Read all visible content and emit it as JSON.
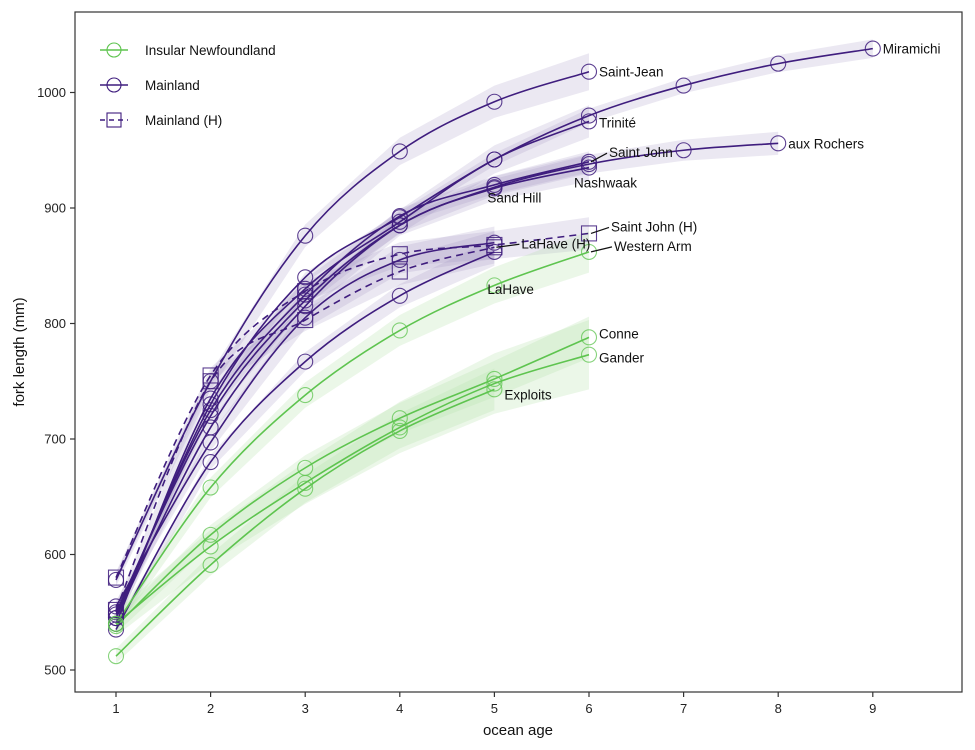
{
  "chart_data": {
    "type": "line",
    "title": "",
    "xlabel": "ocean age",
    "ylabel": "fork length (mm)",
    "xlim": [
      0.3,
      9.9
    ],
    "ylim": [
      481,
      1056
    ],
    "x_ticks": [
      "1",
      "2",
      "3",
      "4",
      "5",
      "6",
      "7",
      "8",
      "9"
    ],
    "y_ticks": [
      "500",
      "600",
      "700",
      "800",
      "900",
      "1000"
    ],
    "grid": false,
    "legend_position": "top-left",
    "colors": {
      "insular": "#5ec44f",
      "mainland": "#3f1d7e",
      "mainland_band": "#9a8ac0",
      "insular_band": "#b7e3ad"
    },
    "legend": [
      {
        "label": "Insular Newfoundland",
        "group": "insular",
        "marker": "circle",
        "dash": false
      },
      {
        "label": "Mainland",
        "group": "mainland",
        "marker": "circle",
        "dash": false
      },
      {
        "label": "Mainland (H)",
        "group": "mainland",
        "marker": "square",
        "dash": true
      }
    ],
    "series": [
      {
        "name": "Miramichi",
        "group": "mainland",
        "marker": "circle",
        "dash": false,
        "x": [
          1,
          2,
          3,
          4,
          5,
          6,
          7,
          8,
          9
        ],
        "values": [
          545,
          730,
          840,
          892,
          942,
          980,
          1006,
          1025,
          1038
        ],
        "band": 8
      },
      {
        "name": "Saint-Jean",
        "group": "mainland",
        "marker": "circle",
        "dash": false,
        "x": [
          1,
          2,
          3,
          4,
          5,
          6
        ],
        "values": [
          578,
          750,
          876,
          949,
          992,
          1018
        ],
        "band": 16
      },
      {
        "name": "Trinité",
        "group": "mainland",
        "marker": "circle",
        "dash": false,
        "x": [
          1,
          2,
          3,
          4,
          5,
          6
        ],
        "values": [
          540,
          735,
          830,
          888,
          942,
          975
        ],
        "band": 14
      },
      {
        "name": "aux Rochers",
        "group": "mainland",
        "marker": "circle",
        "dash": false,
        "x": [
          1,
          2,
          3,
          4,
          5,
          6,
          7,
          8
        ],
        "values": [
          550,
          720,
          820,
          885,
          918,
          938,
          950,
          956
        ],
        "band": 10
      },
      {
        "name": "Saint John",
        "group": "mainland",
        "marker": "circle",
        "dash": false,
        "x": [
          1,
          2,
          3,
          4,
          5,
          6
        ],
        "values": [
          548,
          725,
          825,
          893,
          920,
          940
        ],
        "band": 9
      },
      {
        "name": "Nashwaak",
        "group": "mainland",
        "marker": "circle",
        "dash": false,
        "x": [
          1,
          2,
          3,
          4,
          5,
          6
        ],
        "values": [
          545,
          710,
          815,
          885,
          917,
          935
        ],
        "band": 12
      },
      {
        "name": "Sand Hill",
        "group": "mainland",
        "marker": "circle",
        "dash": false,
        "x": [
          1,
          2,
          3,
          4,
          5
        ],
        "values": [
          555,
          697,
          805,
          855,
          870
        ],
        "band": 14
      },
      {
        "name": "LaHave",
        "group": "mainland",
        "marker": "circle",
        "dash": false,
        "x": [
          1,
          2,
          3,
          4,
          5
        ],
        "values": [
          535,
          680,
          767,
          824,
          862
        ],
        "band": 12
      },
      {
        "name": "Saint John (H)",
        "group": "mainland",
        "marker": "square",
        "dash": true,
        "x": [
          1,
          2,
          3,
          4,
          5,
          6
        ],
        "values": [
          580,
          755,
          828,
          860,
          868,
          878
        ],
        "band": 14
      },
      {
        "name": "LaHave (H)",
        "group": "mainland",
        "marker": "square",
        "dash": true,
        "x": [
          1,
          2,
          3,
          4,
          5
        ],
        "values": [
          552,
          750,
          803,
          845,
          866
        ],
        "band": 14
      },
      {
        "name": "Western Arm",
        "group": "insular",
        "marker": "circle",
        "dash": false,
        "x": [
          1,
          2,
          3,
          4,
          5,
          6
        ],
        "values": [
          540,
          658,
          738,
          794,
          833,
          862
        ],
        "band": 18
      },
      {
        "name": "Conne",
        "group": "insular",
        "marker": "circle",
        "dash": false,
        "x": [
          1,
          2,
          3,
          4,
          5,
          6
        ],
        "values": [
          538,
          617,
          675,
          718,
          752,
          788
        ],
        "band": 18
      },
      {
        "name": "Gander",
        "group": "insular",
        "marker": "circle",
        "dash": false,
        "x": [
          1,
          2,
          3,
          4,
          5,
          6
        ],
        "values": [
          540,
          607,
          662,
          710,
          748,
          773
        ],
        "band": 30
      },
      {
        "name": "Exploits",
        "group": "insular",
        "marker": "circle",
        "dash": false,
        "x": [
          1,
          2,
          3,
          4,
          5
        ],
        "values": [
          512,
          591,
          657,
          707,
          743
        ],
        "band": 18
      }
    ],
    "annotations": [
      {
        "text": "Miramichi",
        "series": "Miramichi",
        "at_x": 9
      },
      {
        "text": "Saint-Jean",
        "series": "Saint-Jean",
        "at_x": 6
      },
      {
        "text": "Trinité",
        "series": "Trinité",
        "at_x": 6
      },
      {
        "text": "aux Rochers",
        "series": "aux Rochers",
        "at_x": 8
      },
      {
        "text": "Saint John",
        "series": "Saint John",
        "at_x": 6
      },
      {
        "text": "Nashwaak",
        "series": "Nashwaak",
        "at_x": 6
      },
      {
        "text": "Sand Hill",
        "series": "Sand Hill",
        "at_x": 5
      },
      {
        "text": "LaHave",
        "series": "LaHave",
        "at_x": 5
      },
      {
        "text": "Saint John (H)",
        "series": "Saint John (H)",
        "at_x": 6
      },
      {
        "text": "LaHave (H)",
        "series": "LaHave (H)",
        "at_x": 5
      },
      {
        "text": "Western Arm",
        "series": "Western Arm",
        "at_x": 6
      },
      {
        "text": "Conne",
        "series": "Conne",
        "at_x": 6
      },
      {
        "text": "Gander",
        "series": "Gander",
        "at_x": 6
      },
      {
        "text": "Exploits",
        "series": "Exploits",
        "at_x": 5
      }
    ]
  }
}
